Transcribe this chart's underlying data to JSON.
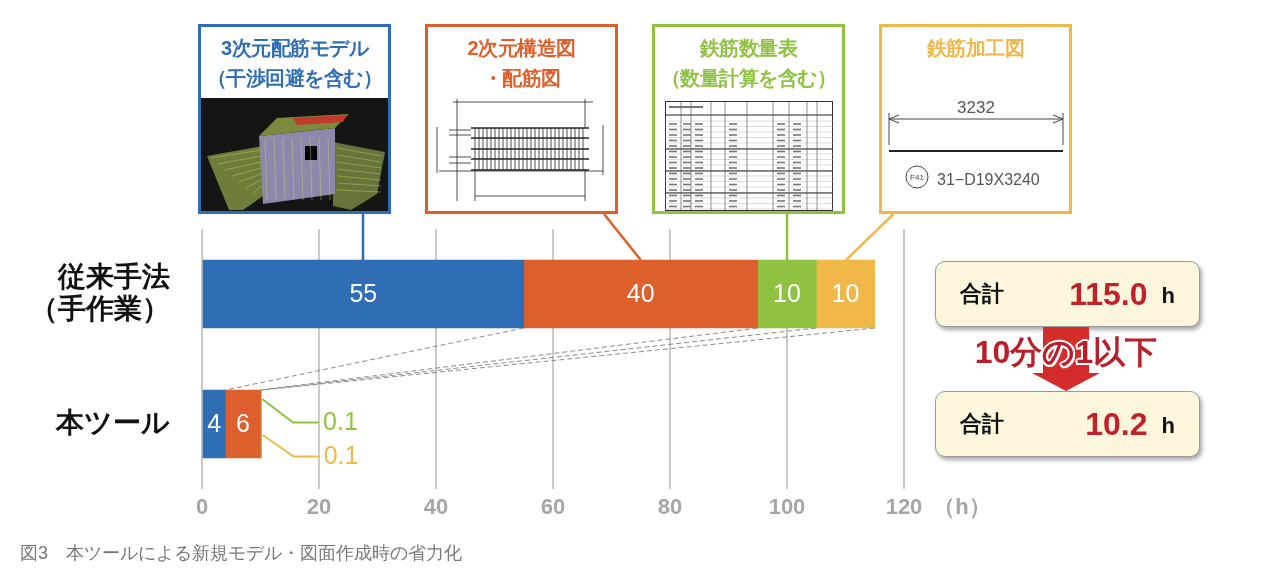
{
  "chart_data": {
    "type": "bar",
    "orientation": "horizontal",
    "stacked": true,
    "categories": [
      "従来手法（手作業）",
      "本ツール"
    ],
    "series": [
      {
        "name": "3次元配筋モデル（干渉回避を含む）",
        "color": "#2f6db4",
        "values": [
          55,
          4
        ]
      },
      {
        "name": "2次元構造図・配筋図",
        "color": "#dd5f2b",
        "values": [
          40,
          6
        ]
      },
      {
        "name": "鉄筋数量表（数量計算を含む）",
        "color": "#8fc240",
        "values": [
          10,
          0.1
        ]
      },
      {
        "name": "鉄筋加工図",
        "color": "#f0b848",
        "values": [
          10,
          0.1
        ]
      }
    ],
    "xlim": [
      0,
      120
    ],
    "xticks": [
      0,
      20,
      40,
      60,
      80,
      100,
      120
    ],
    "xlabel": "（h）",
    "grid": "x",
    "legend": "top",
    "data_labels": true,
    "totals": [
      "合計 115.0 h",
      "合計 10.2 h"
    ],
    "annotations": [
      "3232",
      "F41",
      "31−D19X3240",
      "10分の1以下",
      "図3　本ツールによる新規モデル・図面作成時の省力化"
    ]
  }
}
